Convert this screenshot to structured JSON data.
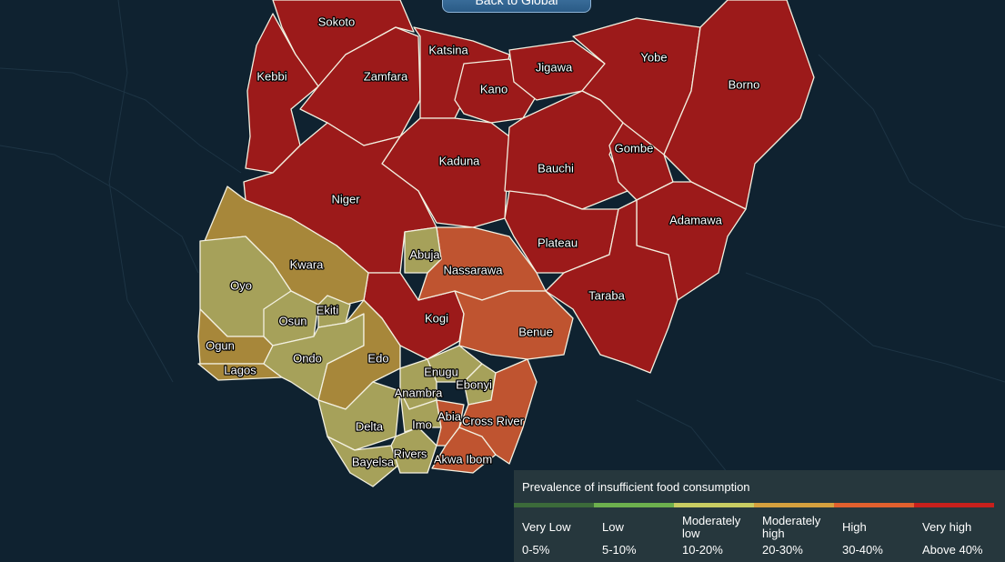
{
  "button": "Back to Global",
  "states": [
    {
      "name": "Sokoto",
      "color": "#9c1a1a"
    },
    {
      "name": "Kebbi",
      "color": "#9c1a1a"
    },
    {
      "name": "Zamfara",
      "color": "#9c1a1a"
    },
    {
      "name": "Katsina",
      "color": "#9c1a1a"
    },
    {
      "name": "Kano",
      "color": "#9c1a1a"
    },
    {
      "name": "Jigawa",
      "color": "#9c1a1a"
    },
    {
      "name": "Yobe",
      "color": "#9c1a1a"
    },
    {
      "name": "Borno",
      "color": "#9c1a1a"
    },
    {
      "name": "Kaduna",
      "color": "#9c1a1a"
    },
    {
      "name": "Bauchi",
      "color": "#9c1a1a"
    },
    {
      "name": "Gombe",
      "color": "#9c1a1a"
    },
    {
      "name": "Niger",
      "color": "#9c1a1a"
    },
    {
      "name": "Adamawa",
      "color": "#9c1a1a"
    },
    {
      "name": "Plateau",
      "color": "#9c1a1a"
    },
    {
      "name": "Taraba",
      "color": "#9c1a1a"
    },
    {
      "name": "Kogi",
      "color": "#9c1a1a"
    },
    {
      "name": "Nassarawa",
      "color": "#bf5430"
    },
    {
      "name": "Abuja",
      "color": "#a6a15a"
    },
    {
      "name": "Benue",
      "color": "#bf5430"
    },
    {
      "name": "Kwara",
      "color": "#a7873a"
    },
    {
      "name": "Oyo",
      "color": "#a6a15a"
    },
    {
      "name": "Ogun",
      "color": "#a7873a"
    },
    {
      "name": "Lagos",
      "color": "#a7873a"
    },
    {
      "name": "Osun",
      "color": "#a6a15a"
    },
    {
      "name": "Ekiti",
      "color": "#a6a15a"
    },
    {
      "name": "Ondo",
      "color": "#a6a15a"
    },
    {
      "name": "Edo",
      "color": "#a7873a"
    },
    {
      "name": "Delta",
      "color": "#a6a15a"
    },
    {
      "name": "Bayelsa",
      "color": "#a6a15a"
    },
    {
      "name": "Rivers",
      "color": "#a6a15a"
    },
    {
      "name": "Anambra",
      "color": "#a6a15a"
    },
    {
      "name": "Enugu",
      "color": "#a6a15a"
    },
    {
      "name": "Ebonyi",
      "color": "#a6a15a"
    },
    {
      "name": "Imo",
      "color": "#a6a15a"
    },
    {
      "name": "Abia",
      "color": "#bf5430"
    },
    {
      "name": "Akwa Ibom",
      "color": "#bf5430"
    },
    {
      "name": "Cross River",
      "color": "#bf5430"
    }
  ],
  "legend": {
    "title": "Prevalence of insufficient food consumption",
    "items": [
      {
        "label": "Very Low",
        "range": "0-5%",
        "color": "#3c6b3a"
      },
      {
        "label": "Low",
        "range": "5-10%",
        "color": "#6db04e"
      },
      {
        "label": "Moderately low",
        "range": "10-20%",
        "color": "#c9cc62"
      },
      {
        "label": "Moderately high",
        "range": "20-30%",
        "color": "#d6a03e"
      },
      {
        "label": "High",
        "range": "30-40%",
        "color": "#e2602e"
      },
      {
        "label": "Very high",
        "range": "Above 40%",
        "color": "#c8201c"
      }
    ]
  }
}
